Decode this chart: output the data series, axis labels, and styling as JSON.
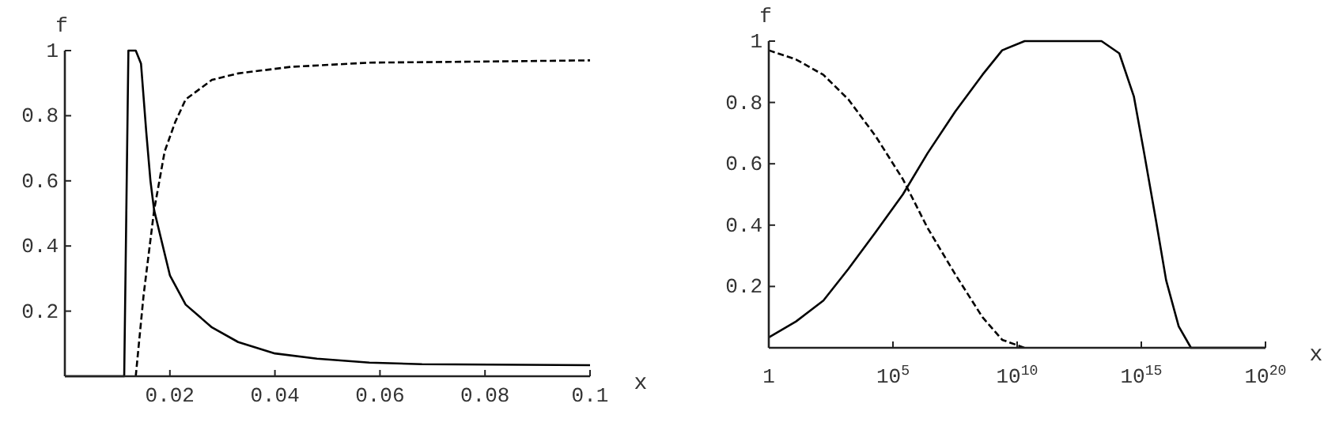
{
  "chart_data": [
    {
      "type": "line",
      "ylabel": "f",
      "xlabel": "x",
      "xlim": [
        0,
        0.1
      ],
      "ylim": [
        0,
        1
      ],
      "xticks": [
        0.02,
        0.04,
        0.06,
        0.08,
        0.1
      ],
      "yticks": [
        0.2,
        0.4,
        0.6,
        0.8,
        1
      ],
      "series": [
        {
          "color": "#000000",
          "line_style": "solid",
          "x": [
            0,
            0.0113,
            0.0117,
            0.0121,
            0.0125,
            0.0135,
            0.0145,
            0.0155,
            0.0163,
            0.017,
            0.02,
            0.023,
            0.028,
            0.033,
            0.04,
            0.048,
            0.058,
            0.068,
            0.1
          ],
          "values": [
            0,
            0,
            0.5,
            1,
            1,
            1,
            0.96,
            0.75,
            0.6,
            0.51,
            0.31,
            0.22,
            0.15,
            0.105,
            0.07,
            0.054,
            0.042,
            0.037,
            0.034
          ]
        },
        {
          "color": "#000000",
          "line_style": "dashed",
          "x": [
            0.0135,
            0.015,
            0.017,
            0.019,
            0.021,
            0.023,
            0.028,
            0.033,
            0.043,
            0.058,
            0.078,
            0.1
          ],
          "values": [
            0,
            0.25,
            0.51,
            0.69,
            0.78,
            0.85,
            0.91,
            0.93,
            0.95,
            0.963,
            0.966,
            0.97
          ]
        }
      ]
    },
    {
      "type": "line",
      "ylabel": "f",
      "xlabel": "x",
      "log": "x",
      "xlim": [
        1,
        1e+20
      ],
      "ylim": [
        0,
        1
      ],
      "xticks": [
        1,
        {
          "value": 100000.0,
          "label": "10$^{5}$"
        },
        {
          "value": 10000000000.0,
          "label": "10$^{10}$"
        },
        {
          "value": 1000000000000000.0,
          "label": "10$^{15}$"
        },
        {
          "value": 1e+20,
          "label": "10$^{20}$"
        }
      ],
      "yticks": [
        0.2,
        0.4,
        0.6,
        0.8,
        1
      ],
      "series": [
        {
          "color": "#000000",
          "line_style": "solid",
          "x": [
            1,
            12.6,
            158,
            1600.0,
            20000.0,
            250000.0,
            2500000.0,
            32000000.0,
            400000000.0,
            2500000000.0,
            20000000000.0,
            25000000000000.0,
            130000000000000.0,
            500000000000000.0,
            1300000000000000.0,
            4000000000000000.0,
            1e+16,
            3.2e+16,
            1e+17,
            1e+20
          ],
          "values": [
            0.034,
            0.086,
            0.154,
            0.257,
            0.377,
            0.5,
            0.635,
            0.77,
            0.89,
            0.97,
            1,
            1,
            0.96,
            0.82,
            0.635,
            0.41,
            0.22,
            0.07,
            0,
            0
          ]
        },
        {
          "color": "#000000",
          "line_style": "dashed",
          "x": [
            1,
            12.6,
            158,
            1600.0,
            20000.0,
            250000.0,
            2500000.0,
            32000000.0,
            400000000.0,
            2500000000.0,
            20000000000.0
          ],
          "values": [
            0.97,
            0.94,
            0.89,
            0.81,
            0.69,
            0.55,
            0.39,
            0.24,
            0.1,
            0.026,
            0
          ]
        }
      ]
    }
  ]
}
